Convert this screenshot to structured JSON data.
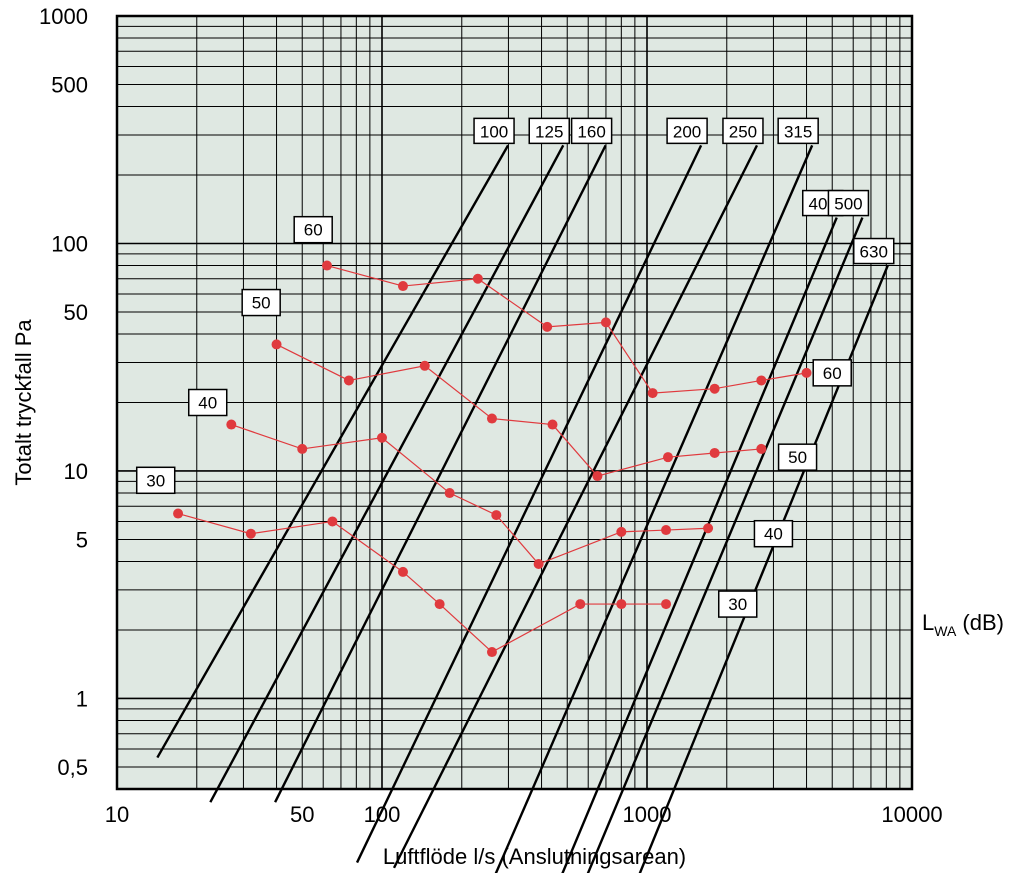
{
  "chart_data": {
    "type": "line",
    "xscale": "log",
    "yscale": "log",
    "xlim": [
      10,
      10000
    ],
    "ylim": [
      0.4,
      1000
    ],
    "xlabel": "Luftflöde l/s (Anslutningsarean)",
    "ylabel": "Totalt tryckfall Pa",
    "xticks": [
      10,
      50,
      100,
      1000,
      10000
    ],
    "xtick_labels": [
      "10",
      "50",
      "100",
      "1000",
      "10000"
    ],
    "yticks": [
      0.5,
      1,
      5,
      10,
      50,
      100,
      500,
      1000
    ],
    "ytick_labels": [
      "0,5",
      "1",
      "5",
      "10",
      "50",
      "100",
      "500",
      "1000"
    ],
    "grid": true,
    "background_color": "#dfe8e2",
    "marker_color": "#e03a3e",
    "side_label": {
      "main": "L",
      "sub": "WA",
      "rest": " (dB)"
    },
    "sizes": [
      {
        "label": "100",
        "points": [
          [
            14.2,
            0.55
          ],
          [
            299,
            270
          ]
        ]
      },
      {
        "label": "125",
        "points": [
          [
            22.5,
            0.35
          ],
          [
            483,
            270
          ]
        ]
      },
      {
        "label": "160",
        "points": [
          [
            39.5,
            0.35
          ],
          [
            698,
            270
          ]
        ]
      },
      {
        "label": "200",
        "points": [
          [
            80.5,
            0.19
          ],
          [
            1600,
            270
          ]
        ]
      },
      {
        "label": "250",
        "points": [
          [
            111,
            0.18
          ],
          [
            2600,
            270
          ]
        ]
      },
      {
        "label": "315",
        "points": [
          [
            236,
            0.12
          ],
          [
            4200,
            270
          ]
        ]
      },
      {
        "label": "400",
        "points": [
          [
            447,
            0.14
          ],
          [
            5200,
            130
          ]
        ]
      },
      {
        "label": "500",
        "points": [
          [
            598,
            0.17
          ],
          [
            6500,
            130
          ]
        ]
      },
      {
        "label": "630",
        "points": [
          [
            877,
            0.14
          ],
          [
            8100,
            80
          ]
        ]
      }
    ],
    "series": [
      {
        "name": "60",
        "points": [
          [
            62,
            80
          ],
          [
            120,
            65
          ],
          [
            230,
            70
          ],
          [
            420,
            43
          ],
          [
            700,
            45
          ],
          [
            1050,
            22
          ],
          [
            1800,
            23
          ],
          [
            2700,
            25
          ],
          [
            4000,
            27
          ]
        ]
      },
      {
        "name": "50",
        "points": [
          [
            40,
            36
          ],
          [
            75,
            25
          ],
          [
            145,
            29
          ],
          [
            260,
            17
          ],
          [
            440,
            16
          ],
          [
            650,
            9.5
          ],
          [
            1200,
            11.5
          ],
          [
            1800,
            12
          ],
          [
            2700,
            12.5
          ]
        ]
      },
      {
        "name": "40",
        "points": [
          [
            27,
            16
          ],
          [
            50,
            12.5
          ],
          [
            100,
            14
          ],
          [
            180,
            8
          ],
          [
            270,
            6.4
          ],
          [
            390,
            3.9
          ],
          [
            800,
            5.4
          ],
          [
            1180,
            5.5
          ],
          [
            1700,
            5.6
          ]
        ]
      },
      {
        "name": "30",
        "points": [
          [
            17,
            6.5
          ],
          [
            32,
            5.3
          ],
          [
            65,
            6
          ],
          [
            120,
            3.6
          ],
          [
            165,
            2.6
          ],
          [
            260,
            1.6
          ],
          [
            560,
            2.6
          ],
          [
            800,
            2.6
          ],
          [
            1180,
            2.6
          ]
        ]
      }
    ],
    "annotations": [
      {
        "text": "60",
        "anchor": [
          55,
          115
        ]
      },
      {
        "text": "50",
        "anchor": [
          35,
          55
        ]
      },
      {
        "text": "40",
        "anchor": [
          22,
          20
        ]
      },
      {
        "text": "30",
        "anchor": [
          14,
          9.1
        ]
      },
      {
        "text": "60",
        "anchor": [
          5000,
          27
        ]
      },
      {
        "text": "50",
        "anchor": [
          3700,
          11.5
        ]
      },
      {
        "text": "40",
        "anchor": [
          3000,
          5.3
        ]
      },
      {
        "text": "30",
        "anchor": [
          2200,
          2.6
        ]
      }
    ]
  }
}
